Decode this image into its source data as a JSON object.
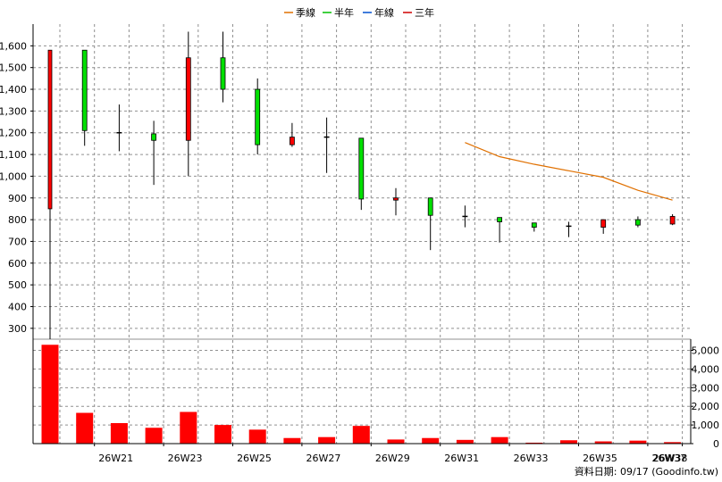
{
  "chart_data": {
    "type": "candlestick",
    "legend": [
      {
        "label": "季線",
        "color": "#e07000"
      },
      {
        "label": "半年",
        "color": "#00c000"
      },
      {
        "label": "年線",
        "color": "#0050d0"
      },
      {
        "label": "三年",
        "color": "#d00000"
      }
    ],
    "price_axis": {
      "ylim": [
        250,
        1700
      ],
      "ticks": [
        300,
        400,
        500,
        600,
        700,
        800,
        900,
        1000,
        1100,
        1200,
        1300,
        1400,
        1500,
        1600
      ],
      "tick_labels": [
        "300",
        "400",
        "500",
        "600",
        "700",
        "800",
        "900",
        "1,000",
        "1,100",
        "1,200",
        "1,300",
        "1,400",
        "1,500",
        "1,600"
      ]
    },
    "volume_axis": {
      "ylim": [
        0,
        5600
      ],
      "ticks": [
        0,
        1000,
        2000,
        3000,
        4000,
        5000
      ],
      "tick_labels": [
        "0",
        "1,000",
        "2,000",
        "3,000",
        "4,000",
        "5,000"
      ]
    },
    "weeks": [
      "26W20",
      "26W21",
      "26W22",
      "26W23",
      "26W24",
      "26W25",
      "26W26",
      "26W27",
      "26W28",
      "26W29",
      "26W30",
      "26W31",
      "26W32",
      "26W33",
      "26W34",
      "26W35",
      "26W36",
      "26W37",
      "26W38"
    ],
    "x_tick_labels": [
      "26W21",
      "26W23",
      "26W25",
      "26W27",
      "26W29",
      "26W31",
      "26W33",
      "26W35",
      "26W37",
      "26W38"
    ],
    "x_tick_weeks": [
      "26W21",
      "26W23",
      "26W25",
      "26W27",
      "26W29",
      "26W31",
      "26W33",
      "26W35",
      "26W37",
      "26W38"
    ],
    "candles": [
      {
        "open": 850,
        "high": 1580,
        "low": 250,
        "close": 1580
      },
      {
        "open": 1580,
        "high": 1580,
        "low": 1140,
        "close": 1210
      },
      {
        "open": 1200,
        "high": 1330,
        "low": 1115,
        "close": 1200
      },
      {
        "open": 1195,
        "high": 1255,
        "low": 960,
        "close": 1165
      },
      {
        "open": 1165,
        "high": 1665,
        "low": 1000,
        "close": 1545
      },
      {
        "open": 1545,
        "high": 1665,
        "low": 1340,
        "close": 1400
      },
      {
        "open": 1400,
        "high": 1450,
        "low": 1100,
        "close": 1145
      },
      {
        "open": 1145,
        "high": 1245,
        "low": 1135,
        "close": 1180
      },
      {
        "open": 1180,
        "high": 1270,
        "low": 1015,
        "close": 1180
      },
      {
        "open": 1175,
        "high": 1175,
        "low": 845,
        "close": 895
      },
      {
        "open": 890,
        "high": 945,
        "low": 820,
        "close": 900
      },
      {
        "open": 900,
        "high": 900,
        "low": 660,
        "close": 820
      },
      {
        "open": 815,
        "high": 865,
        "low": 765,
        "close": 815
      },
      {
        "open": 810,
        "high": 810,
        "low": 695,
        "close": 790
      },
      {
        "open": 785,
        "high": 785,
        "low": 745,
        "close": 765
      },
      {
        "open": 770,
        "high": 790,
        "low": 720,
        "close": 770
      },
      {
        "open": 765,
        "high": 800,
        "low": 735,
        "close": 800
      },
      {
        "open": 800,
        "high": 815,
        "low": 765,
        "close": 775
      },
      {
        "open": 780,
        "high": 825,
        "low": 775,
        "close": 815
      }
    ],
    "volume": [
      5300,
      1650,
      1100,
      850,
      1700,
      1000,
      750,
      300,
      350,
      950,
      220,
      300,
      200,
      350,
      50,
      180,
      120,
      160,
      80
    ],
    "ma_season": {
      "name": "季線",
      "weeks": [
        "26W32",
        "26W33",
        "26W34",
        "26W35",
        "26W36",
        "26W37",
        "26W38"
      ],
      "values": [
        1155,
        1090,
        1055,
        1025,
        995,
        935,
        890
      ]
    },
    "footer": "資料日期: 09/17  (Goodinfo.tw)"
  }
}
